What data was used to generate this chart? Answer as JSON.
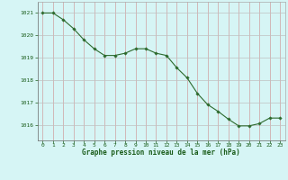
{
  "x": [
    0,
    1,
    2,
    3,
    4,
    5,
    6,
    7,
    8,
    9,
    10,
    11,
    12,
    13,
    14,
    15,
    16,
    17,
    18,
    19,
    20,
    21,
    22,
    23
  ],
  "y": [
    1021.0,
    1021.0,
    1020.7,
    1020.3,
    1019.8,
    1019.4,
    1019.1,
    1019.1,
    1019.2,
    1019.4,
    1019.4,
    1019.2,
    1019.1,
    1018.55,
    1018.1,
    1017.4,
    1016.9,
    1016.6,
    1016.25,
    1015.95,
    1015.95,
    1016.05,
    1016.3,
    1016.3
  ],
  "line_color": "#2d6a2d",
  "marker_color": "#2d6a2d",
  "bg_color": "#d6f5f5",
  "grid_color_v": "#d0a0a0",
  "grid_color_h": "#c0c0c0",
  "xlabel": "Graphe pression niveau de la mer (hPa)",
  "xlabel_color": "#1a5c1a",
  "tick_label_color": "#1a5c1a",
  "ylim_min": 1015.3,
  "ylim_max": 1021.5,
  "yticks": [
    1016,
    1017,
    1018,
    1019,
    1020,
    1021
  ],
  "xticks": [
    0,
    1,
    2,
    3,
    4,
    5,
    6,
    7,
    8,
    9,
    10,
    11,
    12,
    13,
    14,
    15,
    16,
    17,
    18,
    19,
    20,
    21,
    22,
    23
  ],
  "fig_bg_color": "#d6f5f5"
}
